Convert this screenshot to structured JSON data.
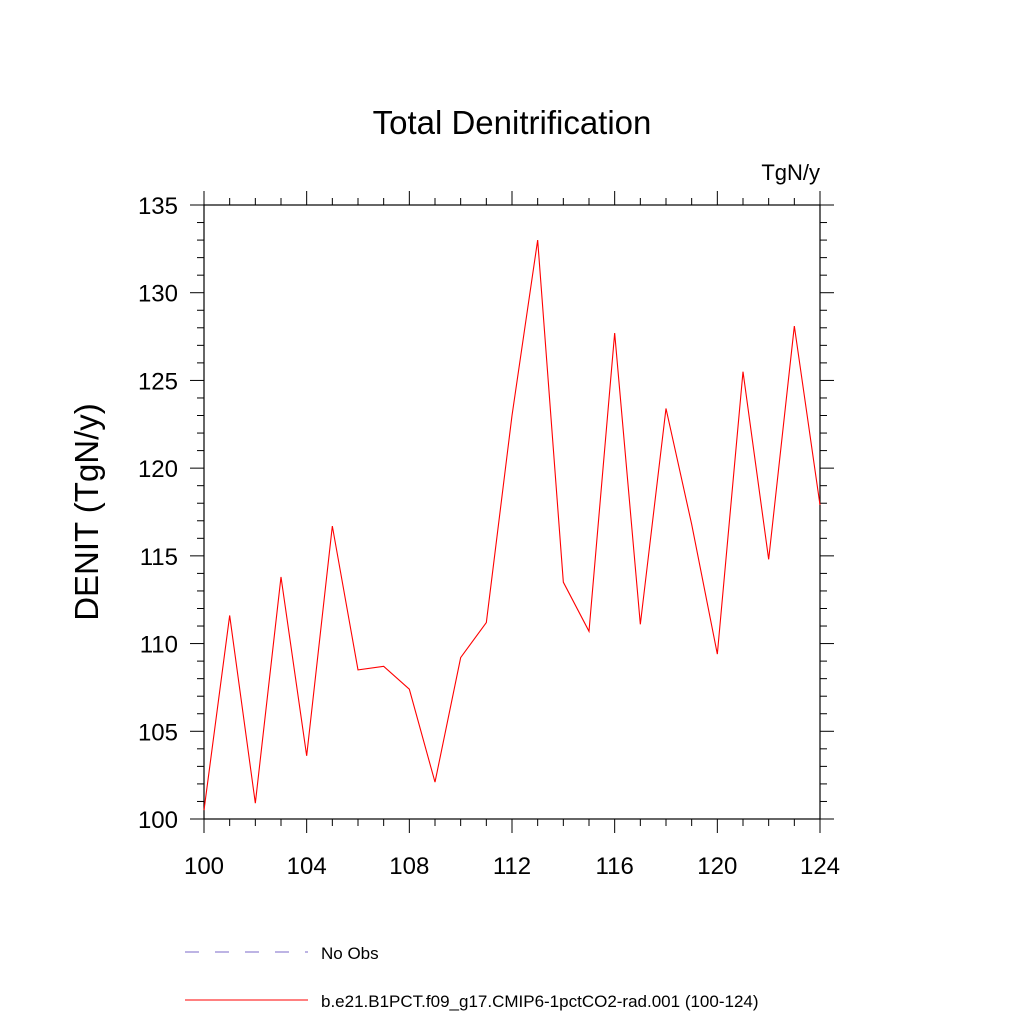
{
  "chart_data": {
    "type": "line",
    "title": "Total Denitrification",
    "units_label": "TgN/y",
    "ylabel": "DENIT  (TgN/y)",
    "xlabel": "",
    "xlim": [
      100,
      124
    ],
    "ylim": [
      100,
      135
    ],
    "x_ticks": [
      100,
      104,
      108,
      112,
      116,
      120,
      124
    ],
    "y_ticks": [
      100,
      105,
      110,
      115,
      120,
      125,
      130,
      135
    ],
    "grid": false,
    "x": [
      100,
      101,
      102,
      103,
      104,
      105,
      106,
      107,
      108,
      109,
      110,
      111,
      112,
      113,
      114,
      115,
      116,
      117,
      118,
      119,
      120,
      121,
      122,
      123,
      124
    ],
    "series": [
      {
        "name": "b.e21.B1PCT.f09_g17.CMIP6-1pctCO2-rad.001 (100-124)",
        "color": "#ff0000",
        "style": "solid",
        "values": [
          100.5,
          111.6,
          100.9,
          113.8,
          103.6,
          116.7,
          108.5,
          108.7,
          107.4,
          102.1,
          109.2,
          111.2,
          123.0,
          133.0,
          113.5,
          110.7,
          127.7,
          111.1,
          123.4,
          116.8,
          109.4,
          125.5,
          114.8,
          128.1,
          117.9
        ]
      }
    ],
    "legend": {
      "placement": "bottom",
      "entries": [
        {
          "label": "No Obs",
          "color": "#7b68c8",
          "style": "dashed"
        },
        {
          "label": "b.e21.B1PCT.f09_g17.CMIP6-1pctCO2-rad.001 (100-124)",
          "color": "#ff0000",
          "style": "solid"
        }
      ]
    }
  }
}
